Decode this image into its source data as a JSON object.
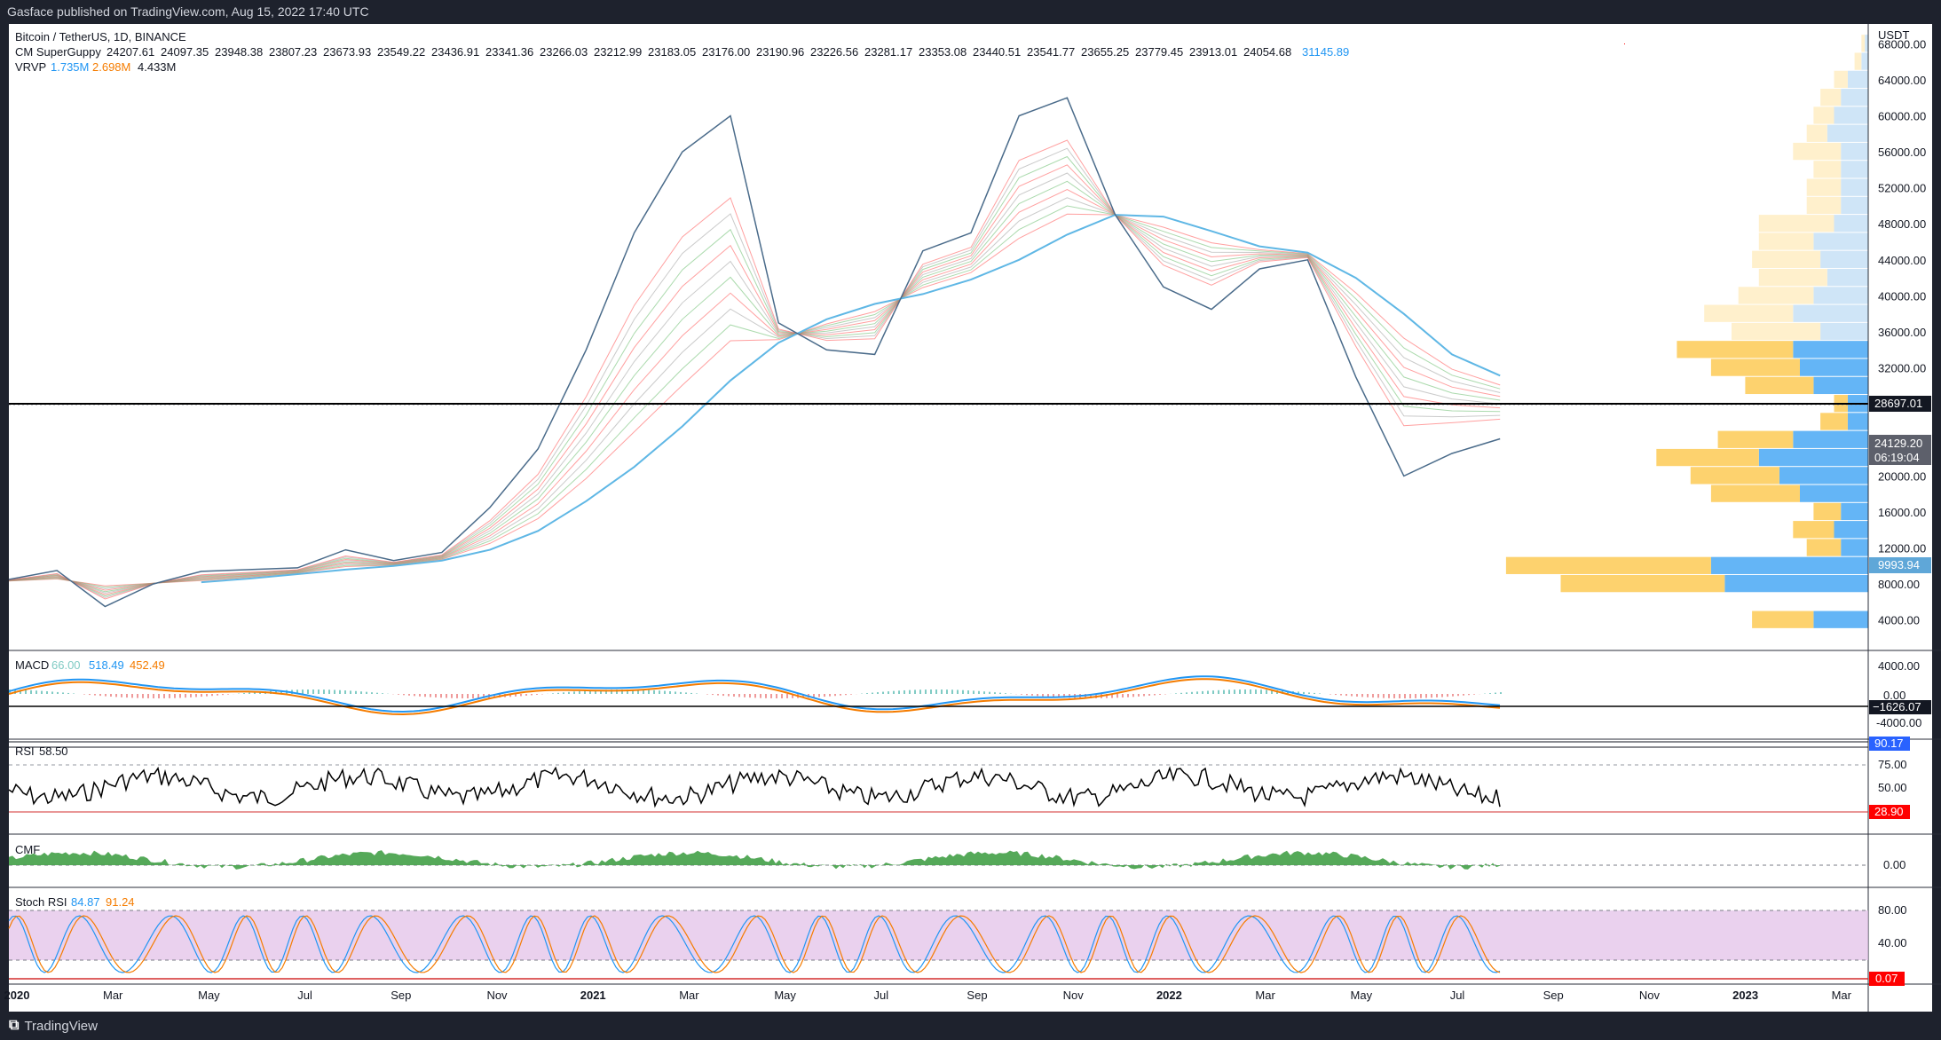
{
  "header": {
    "text": "Gasface published on TradingView.com, Aug 15, 2022 17:40 UTC"
  },
  "footer": {
    "brand": "TradingView"
  },
  "main_legend": {
    "symbol": "Bitcoin / TetherUS, 1D, BINANCE",
    "supergupppy_name": "CM SuperGuppy",
    "supergupppy_values": [
      "24207.61",
      "24097.35",
      "23948.38",
      "23807.23",
      "23673.93",
      "23549.22",
      "23436.91",
      "23341.36",
      "23266.03",
      "23212.99",
      "23183.05",
      "23176.00",
      "23190.96",
      "23226.56",
      "23281.17",
      "23353.08",
      "23440.51",
      "23541.77",
      "23655.25",
      "23779.45",
      "23913.01",
      "24054.68"
    ],
    "supergupppy_last": "31145.89",
    "vrvp_name": "VRVP",
    "vrvp_values": [
      "1.735M",
      "2.698M",
      "4.433M"
    ]
  },
  "price_axis": {
    "currency": "USDT",
    "ticks": [
      "68000.00",
      "64000.00",
      "60000.00",
      "56000.00",
      "52000.00",
      "48000.00",
      "44000.00",
      "40000.00",
      "36000.00",
      "32000.00",
      "28000.00",
      "24000.00",
      "20000.00",
      "16000.00",
      "12000.00",
      "8000.00",
      "4000.00"
    ],
    "hline_label": "28697.01",
    "last_price": "24129.20",
    "countdown": "06:19:04",
    "dotted_label": "9993.94"
  },
  "time_axis": [
    "2020",
    "Mar",
    "May",
    "Jul",
    "Sep",
    "Nov",
    "2021",
    "Mar",
    "May",
    "Jul",
    "Sep",
    "Nov",
    "2022",
    "Mar",
    "May",
    "Jul",
    "Sep",
    "Nov",
    "2023",
    "Mar"
  ],
  "macd": {
    "name": "MACD",
    "values": [
      "66.00",
      "518.49",
      "452.49"
    ],
    "ticks": [
      "4000.00",
      "0.00",
      "-4000.00"
    ],
    "hline_label": "−1626.07"
  },
  "rsi": {
    "name": "RSI",
    "value": "58.50",
    "ticks": [
      "75.00",
      "50.00"
    ],
    "upper_label": "90.17",
    "lower_label": "28.90"
  },
  "cmf": {
    "name": "CMF",
    "ticks": [
      "0.00"
    ]
  },
  "stoch": {
    "name": "Stoch RSI",
    "values": [
      "84.87",
      "91.24"
    ],
    "ticks": [
      "80.00",
      "40.00"
    ],
    "lower_label": "0.07"
  },
  "colors": {
    "blue": "#2196f3",
    "orange": "#f57c00",
    "red": "#ff0000",
    "green": "#43a047",
    "macd_teal": "#80cbc4",
    "ma_line": "#5fb7e5",
    "vp_blue": "#64b5f6",
    "vp_orange": "#ffc107"
  },
  "chart_data": [
    {
      "type": "line",
      "title": "Bitcoin / TetherUS, 1D, BINANCE",
      "x": [
        "2020-01",
        "2020-02",
        "2020-03",
        "2020-04",
        "2020-05",
        "2020-06",
        "2020-07",
        "2020-08",
        "2020-09",
        "2020-10",
        "2020-11",
        "2020-12",
        "2021-01",
        "2021-02",
        "2021-03",
        "2021-04",
        "2021-05",
        "2021-06",
        "2021-07",
        "2021-08",
        "2021-09",
        "2021-10",
        "2021-11",
        "2021-12",
        "2022-01",
        "2022-02",
        "2022-03",
        "2022-04",
        "2022-05",
        "2022-06",
        "2022-07",
        "2022-08"
      ],
      "series": [
        {
          "name": "Bitcoin / TetherUS",
          "values": [
            8500,
            9500,
            5500,
            8000,
            9400,
            9600,
            9800,
            11800,
            10600,
            11500,
            16500,
            23000,
            34000,
            47000,
            56000,
            60000,
            37000,
            34000,
            33500,
            45000,
            47000,
            60000,
            62000,
            49000,
            41000,
            38500,
            43000,
            44000,
            31000,
            20000,
            22500,
            24129
          ]
        },
        {
          "name": "Moving average",
          "values": [
            8300,
            8400,
            8200,
            8100,
            8200,
            8600,
            9100,
            9600,
            10000,
            10600,
            11800,
            13900,
            17200,
            21000,
            25500,
            30600,
            34800,
            37400,
            39100,
            40200,
            41800,
            44000,
            46800,
            49000,
            48800,
            47200,
            45500,
            44800,
            42000,
            38000,
            33500,
            31146
          ]
        }
      ],
      "ylim": [
        2000,
        70000
      ],
      "ylabel": "USDT",
      "hlines": [
        28697.01,
        9993.94
      ]
    },
    {
      "type": "bar",
      "title": "VRVP",
      "categories": [
        "4000",
        "8000",
        "10000",
        "12000",
        "14000",
        "16000",
        "18000",
        "20000",
        "22000",
        "24000",
        "26000",
        "28000",
        "30000",
        "32000",
        "34000",
        "36000",
        "38000",
        "40000",
        "42000",
        "44000",
        "46000",
        "48000",
        "50000",
        "52000",
        "54000",
        "56000",
        "58000",
        "60000",
        "62000",
        "64000",
        "66000",
        "68000"
      ],
      "series": [
        {
          "name": "up",
          "values": [
            0.9,
            2.4,
            3.0,
            0.5,
            0.6,
            0.4,
            1.3,
            1.3,
            1.5,
            1.1,
            0.4,
            0.2,
            1.0,
            1.3,
            1.7,
            1.3,
            1.3,
            1.1,
            1.0,
            1.0,
            0.8,
            1.1,
            0.5,
            0.5,
            0.4,
            0.7,
            0.3,
            0.3,
            0.3,
            0.2,
            0.1,
            0.05
          ]
        },
        {
          "name": "down",
          "values": [
            0.8,
            2.1,
            2.3,
            0.4,
            0.5,
            0.4,
            1.0,
            1.3,
            1.6,
            1.1,
            0.3,
            0.3,
            0.8,
            1.0,
            1.1,
            0.7,
            1.1,
            0.8,
            0.6,
            0.7,
            0.8,
            0.5,
            0.4,
            0.4,
            0.4,
            0.4,
            0.6,
            0.5,
            0.4,
            0.3,
            0.1,
            0.05
          ]
        }
      ]
    }
  ]
}
